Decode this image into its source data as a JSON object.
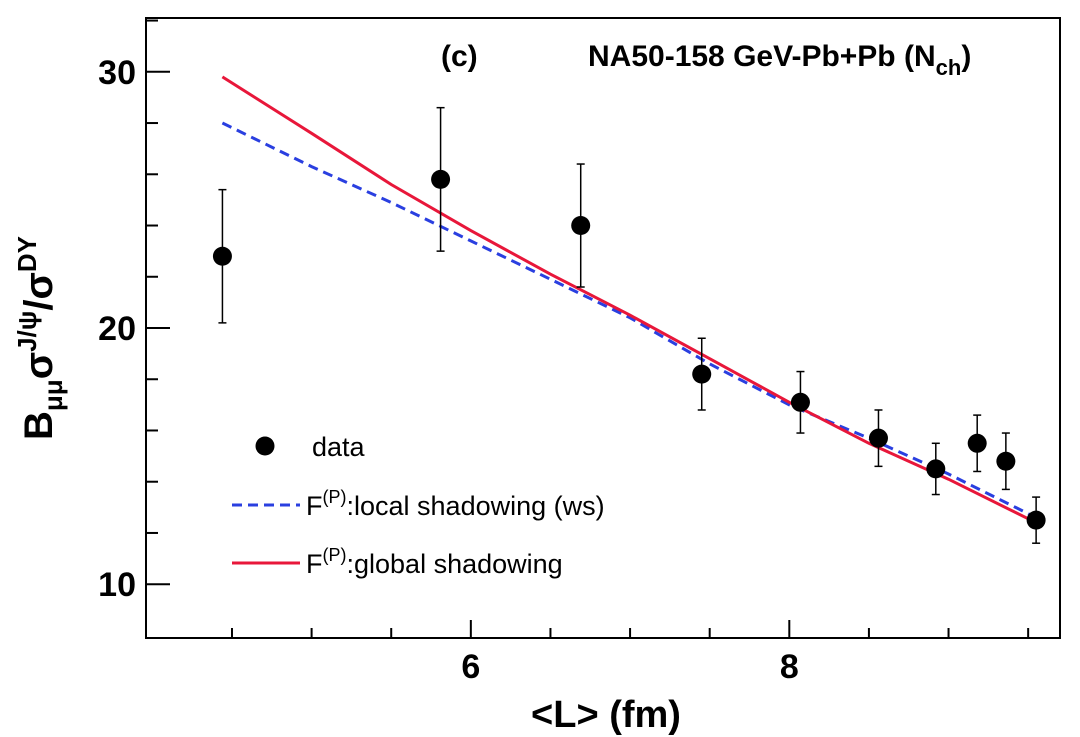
{
  "chart_data": {
    "type": "scatter",
    "panel_label": "(c)",
    "title": "NA50-158 GeV-Pb+Pb (N",
    "title_subscript": "ch",
    "title_suffix": ")",
    "xlabel": "<L> (fm)",
    "ylabel": {
      "base": "B",
      "base_sub": "μμ",
      "sigma1": "σ",
      "sigma1_sup": "J/ψ",
      "slash": "/",
      "sigma2": "σ",
      "sigma2_sup": "DY"
    },
    "xlim": [
      3.96,
      9.7
    ],
    "ylim": [
      7.9,
      32.1
    ],
    "x_major_ticks": [
      6,
      8
    ],
    "x_minor_ticks": [
      4.5,
      5,
      5.5,
      6.5,
      7,
      7.5,
      8.5,
      9,
      9.5
    ],
    "x_tick_labels": [
      "6",
      "8"
    ],
    "y_major_ticks": [
      10,
      20,
      30
    ],
    "y_minor_ticks": [
      12,
      14,
      16,
      18,
      22,
      24,
      26,
      28,
      32
    ],
    "y_tick_labels": [
      "10",
      "20",
      "30"
    ],
    "series": [
      {
        "name": "data",
        "kind": "points",
        "color": "#000000",
        "x": [
          4.44,
          5.81,
          6.69,
          7.45,
          8.07,
          8.56,
          8.92,
          9.18,
          9.36,
          9.55
        ],
        "y": [
          22.8,
          25.8,
          24.0,
          18.2,
          17.1,
          15.7,
          14.5,
          15.5,
          14.8,
          12.5
        ],
        "err": [
          2.6,
          2.8,
          2.4,
          1.4,
          1.2,
          1.1,
          1.0,
          1.1,
          1.1,
          0.9
        ]
      },
      {
        "name": "F(P):local shadowing (ws)",
        "kind": "line",
        "color": "#2a3fe0",
        "dash": true,
        "x": [
          4.44,
          5.0,
          5.5,
          6.0,
          6.5,
          7.0,
          7.5,
          8.0,
          8.5,
          9.0,
          9.55
        ],
        "y": [
          28.0,
          26.3,
          24.9,
          23.4,
          21.9,
          20.4,
          18.6,
          17.0,
          15.7,
          14.3,
          12.6
        ]
      },
      {
        "name": "F(P):global shadowing",
        "kind": "line",
        "color": "#e8173a",
        "dash": false,
        "x": [
          4.44,
          5.0,
          5.5,
          6.0,
          6.5,
          7.0,
          7.5,
          8.0,
          8.5,
          9.0,
          9.55
        ],
        "y": [
          29.8,
          27.6,
          25.6,
          23.8,
          22.1,
          20.5,
          18.8,
          17.1,
          15.5,
          14.1,
          12.4
        ]
      }
    ],
    "legend": [
      {
        "key": "data",
        "label": "data",
        "sup": ""
      },
      {
        "key": "local",
        "label": ":local shadowing (ws)",
        "prefix": "F",
        "sup": "(P)"
      },
      {
        "key": "global",
        "label": ":global shadowing",
        "prefix": "F",
        "sup": "(P)"
      }
    ],
    "legend_position": "lower-left"
  }
}
